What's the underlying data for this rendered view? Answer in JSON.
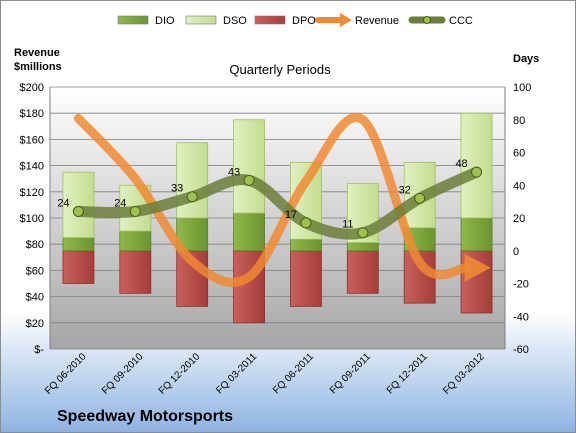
{
  "company": "Speedway Motorsports",
  "chart_data": {
    "type": "bar",
    "title": "Quarterly Periods",
    "left_axis_label": "Revenue\n$millions",
    "right_axis_label": "Days",
    "categories": [
      "FQ 06-2010",
      "FQ 09-2010",
      "FQ 12-2010",
      "FQ 03-2011",
      "FQ 06-2011",
      "FQ 09-2011",
      "FQ 12-2011",
      "FQ 03-2012"
    ],
    "left_axis": {
      "min": 0,
      "max": 200,
      "step": 20,
      "tick_labels": [
        "$-",
        "$20",
        "$40",
        "$60",
        "$80",
        "$100",
        "$120",
        "$140",
        "$160",
        "$180",
        "$200"
      ]
    },
    "right_axis": {
      "min": -60,
      "max": 100,
      "step": 20,
      "tick_labels": [
        "-60",
        "-40",
        "-20",
        "0",
        "20",
        "40",
        "60",
        "80",
        "100"
      ]
    },
    "series": [
      {
        "name": "DIO",
        "axis": "right",
        "color": "#7aa33a",
        "values": [
          8,
          12,
          20,
          23,
          7,
          5,
          14,
          20
        ]
      },
      {
        "name": "DSO",
        "axis": "right",
        "color": "#cfe6a3",
        "values": [
          40,
          28,
          46,
          57,
          47,
          36,
          40,
          64
        ]
      },
      {
        "name": "DPO",
        "axis": "right",
        "color": "#c0504d",
        "values": [
          -20,
          -26,
          -34,
          -44,
          -34,
          -26,
          -32,
          -38
        ]
      },
      {
        "name": "Revenue",
        "axis": "left",
        "color": "#f08a33",
        "values": [
          176,
          130,
          67,
          55,
          128,
          175,
          66,
          62
        ]
      },
      {
        "name": "CCC",
        "axis": "right",
        "color": "#6b7e3a",
        "values": [
          24,
          24,
          33,
          43,
          17,
          11,
          32,
          48
        ],
        "labels": [
          "24",
          "24",
          "33",
          "43",
          "17",
          "11",
          "32",
          "48"
        ]
      }
    ],
    "legend": {
      "placement": "top",
      "entries": [
        "DIO",
        "DSO",
        "DPO",
        "Revenue",
        "CCC"
      ]
    },
    "grid": true
  }
}
